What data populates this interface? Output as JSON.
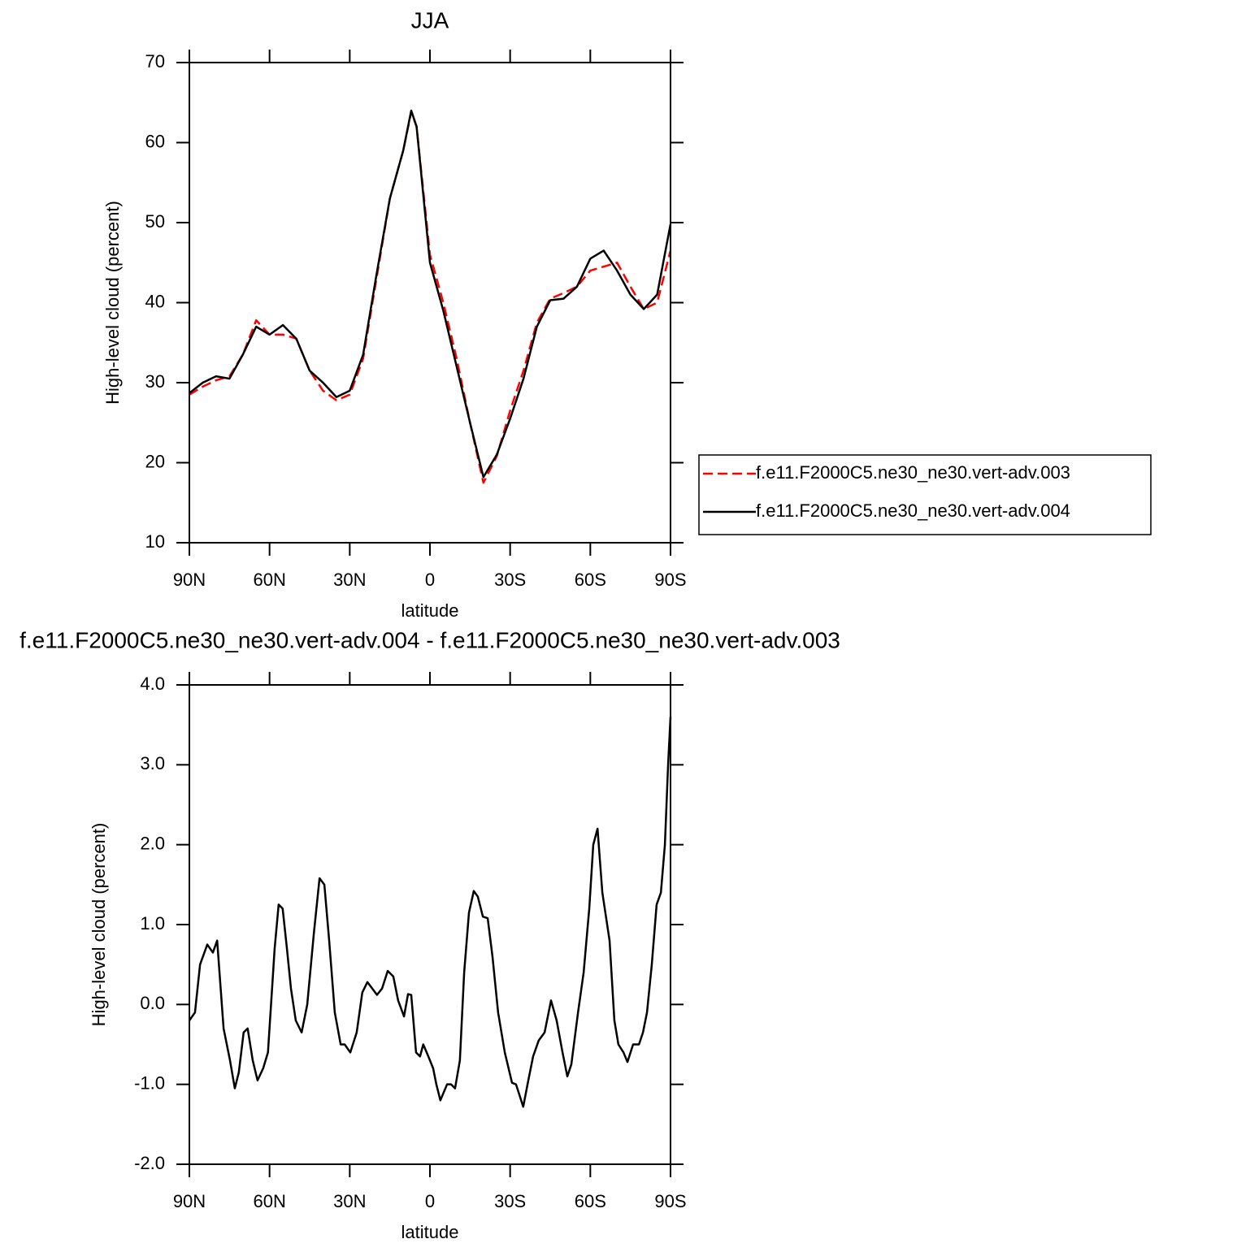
{
  "chart_data": [
    {
      "type": "line",
      "title": "JJA",
      "xlabel": "latitude",
      "ylabel": "High-level cloud (percent)",
      "x": [
        90,
        85,
        80,
        75,
        70,
        65,
        60,
        55,
        50,
        45,
        40,
        35,
        30,
        25,
        20,
        15,
        10,
        7,
        5,
        0,
        -5,
        -10,
        -15,
        -20,
        -25,
        -30,
        -35,
        -40,
        -45,
        -50,
        -55,
        -60,
        -65,
        -70,
        -75,
        -80,
        -85,
        -90
      ],
      "xlim": [
        90,
        -90
      ],
      "xticks": [
        {
          "value": 90,
          "label": "90N"
        },
        {
          "value": 60,
          "label": "60N"
        },
        {
          "value": 30,
          "label": "30N"
        },
        0,
        {
          "value": -30,
          "label": "30S"
        },
        {
          "value": -60,
          "label": "60S"
        },
        {
          "value": -90,
          "label": "90S"
        }
      ],
      "ylim": [
        10,
        70
      ],
      "yticks": [
        10,
        20,
        30,
        40,
        50,
        60,
        70
      ],
      "legend": "right",
      "series": [
        {
          "name": "f.e11.F2000C5.ne30_ne30.vert-adv.003",
          "color": "#ff0000",
          "dash": "dashed",
          "values": [
            28.5,
            29.5,
            30.3,
            30.8,
            33.5,
            37.8,
            36.0,
            36.0,
            35.5,
            31.5,
            29.0,
            27.8,
            28.5,
            33.0,
            43.0,
            53,
            59,
            63.8,
            62,
            46,
            40,
            33,
            25,
            17.5,
            20.8,
            26.5,
            31.5,
            37.5,
            40.5,
            41.2,
            42,
            44,
            44.5,
            45,
            42,
            39.2,
            40,
            46.5
          ]
        },
        {
          "name": "f.e11.F2000C5.ne30_ne30.vert-adv.004",
          "color": "#000000",
          "dash": "solid",
          "values": [
            28.7,
            30.0,
            30.8,
            30.5,
            33.5,
            37.0,
            36.0,
            37.2,
            35.5,
            31.5,
            30.0,
            28.2,
            29.0,
            33.5,
            43.5,
            53,
            59,
            64,
            62,
            45,
            39,
            32,
            25,
            18.2,
            21,
            25.5,
            30.5,
            37,
            40.3,
            40.5,
            42,
            45.5,
            46.5,
            44,
            41,
            39.2,
            41,
            49.8
          ]
        }
      ]
    },
    {
      "type": "line",
      "title": "f.e11.F2000C5.ne30_ne30.vert-adv.004 - f.e11.F2000C5.ne30_ne30.vert-adv.003",
      "xlabel": "latitude",
      "ylabel": "High-level cloud (percent)",
      "x": [
        90,
        87.9,
        86.0,
        83.3,
        81.2,
        79.6,
        77.2,
        74.8,
        73.0,
        71.5,
        69.7,
        68.2,
        66.3,
        64.5,
        62.4,
        60.6,
        58.1,
        56.6,
        55.1,
        53.5,
        52.0,
        50.2,
        48.0,
        45.9,
        43.4,
        41.3,
        39.5,
        37.7,
        35.6,
        33.4,
        31.9,
        29.8,
        27.4,
        25.3,
        23.4,
        21.6,
        19.8,
        17.9,
        15.8,
        13.7,
        11.9,
        9.7,
        8.2,
        7.0,
        5.2,
        3.7,
        2.5,
        0.6,
        -1.2,
        -2.4,
        -3.9,
        -6.4,
        -7.9,
        -9.4,
        -11.2,
        -12.8,
        -14.6,
        -16.4,
        -17.9,
        -19.8,
        -21.6,
        -23.4,
        -25.5,
        -28.0,
        -30.7,
        -32.2,
        -34.9,
        -36.8,
        -38.6,
        -40.7,
        -42.9,
        -45.3,
        -47.4,
        -49.6,
        -51.4,
        -52.9,
        -55.4,
        -57.5,
        -59.6,
        -61.1,
        -62.7,
        -64.5,
        -67.2,
        -69.0,
        -70.5,
        -72.4,
        -73.9,
        -76.0,
        -78.2,
        -79.7,
        -81.2,
        -83.0,
        -84.8,
        -86.4,
        -87.9,
        -89.1,
        -90
      ],
      "xlim": [
        90,
        -90
      ],
      "xticks": [
        {
          "value": 90,
          "label": "90N"
        },
        {
          "value": 60,
          "label": "60N"
        },
        {
          "value": 30,
          "label": "30N"
        },
        0,
        {
          "value": -30,
          "label": "30S"
        },
        {
          "value": -60,
          "label": "60S"
        },
        {
          "value": -90,
          "label": "90S"
        }
      ],
      "ylim": [
        -2,
        4
      ],
      "yticks": [
        {
          "value": -2,
          "label": "-2.0"
        },
        {
          "value": -1,
          "label": "-1.0"
        },
        {
          "value": 0,
          "label": "0.0"
        },
        {
          "value": 1,
          "label": "1.0"
        },
        {
          "value": 2,
          "label": "2.0"
        },
        {
          "value": 3,
          "label": "3.0"
        },
        {
          "value": 4,
          "label": "4.0"
        }
      ],
      "series": [
        {
          "color": "#000000",
          "dash": "solid",
          "values": [
            -0.2,
            -0.1,
            0.5,
            0.75,
            0.65,
            0.8,
            -0.3,
            -0.7,
            -1.05,
            -0.85,
            -0.35,
            -0.3,
            -0.7,
            -0.95,
            -0.8,
            -0.6,
            0.7,
            1.25,
            1.2,
            0.7,
            0.2,
            -0.2,
            -0.35,
            0.0,
            0.9,
            1.58,
            1.5,
            0.8,
            -0.1,
            -0.5,
            -0.5,
            -0.6,
            -0.35,
            0.15,
            0.28,
            0.2,
            0.12,
            0.2,
            0.42,
            0.35,
            0.05,
            -0.15,
            0.13,
            0.12,
            -0.6,
            -0.65,
            -0.5,
            -0.65,
            -0.8,
            -1.0,
            -1.2,
            -1.0,
            -1.0,
            -1.05,
            -0.7,
            0.4,
            1.15,
            1.42,
            1.35,
            1.1,
            1.08,
            0.6,
            -0.1,
            -0.6,
            -0.98,
            -1.0,
            -1.28,
            -0.95,
            -0.65,
            -0.45,
            -0.35,
            0.05,
            -0.2,
            -0.6,
            -0.9,
            -0.75,
            -0.1,
            0.4,
            1.2,
            2.0,
            2.2,
            1.4,
            0.8,
            -0.2,
            -0.5,
            -0.6,
            -0.72,
            -0.5,
            -0.5,
            -0.35,
            -0.1,
            0.5,
            1.25,
            1.4,
            2.0,
            3.0,
            3.6
          ]
        }
      ]
    }
  ]
}
